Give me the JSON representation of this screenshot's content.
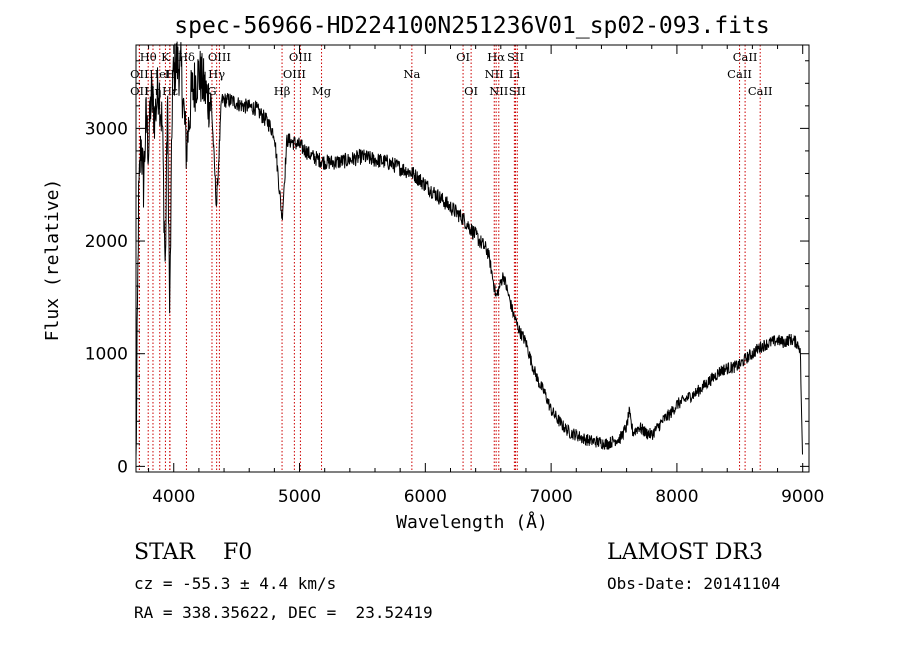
{
  "chart_data": {
    "type": "line",
    "title": "spec-56966-HD224100N251236V01_sp02-093.fits",
    "xlabel": "Wavelength (Å)",
    "ylabel": "Flux (relative)",
    "xlim": [
      3700,
      9050
    ],
    "ylim": [
      -50,
      3740
    ],
    "xticks": [
      4000,
      5000,
      6000,
      7000,
      8000,
      9000
    ],
    "yticks": [
      0,
      1000,
      2000,
      3000
    ],
    "grid": false,
    "series": [
      {
        "x": [
          3700,
          3720,
          3740,
          3760,
          3780,
          3800,
          3820,
          3850,
          3880,
          3910,
          3933,
          3950,
          3968,
          3990,
          4020,
          4060,
          4101,
          4140,
          4200,
          4260,
          4300,
          4340,
          4380,
          4450,
          4550,
          4650,
          4750,
          4800,
          4861,
          4900,
          5000,
          5100,
          5200,
          5300,
          5400,
          5500,
          5600,
          5700,
          5800,
          5900,
          6000,
          6100,
          6200,
          6300,
          6400,
          6500,
          6563,
          6620,
          6700,
          6750,
          6800,
          6850,
          6900,
          6950,
          7000,
          7050,
          7100,
          7150,
          7200,
          7250,
          7300,
          7350,
          7400,
          7450,
          7500,
          7550,
          7600,
          7620,
          7650,
          7700,
          7750,
          7800,
          7850,
          7900,
          7950,
          8000,
          8050,
          8100,
          8150,
          8200,
          8250,
          8300,
          8350,
          8400,
          8450,
          8500,
          8550,
          8600,
          8650,
          8700,
          8750,
          8800,
          8850,
          8900,
          8950,
          8980,
          9000
        ],
        "y": [
          0,
          2300,
          2900,
          2500,
          3100,
          2800,
          3300,
          3100,
          3400,
          3000,
          1700,
          3300,
          1300,
          3400,
          3600,
          3500,
          2800,
          3300,
          3500,
          3300,
          3200,
          2300,
          3250,
          3250,
          3200,
          3180,
          3050,
          2950,
          2200,
          2900,
          2850,
          2750,
          2700,
          2700,
          2720,
          2750,
          2720,
          2700,
          2650,
          2600,
          2500,
          2400,
          2300,
          2200,
          2050,
          1900,
          1500,
          1700,
          1350,
          1200,
          1100,
          900,
          750,
          650,
          500,
          420,
          350,
          300,
          280,
          250,
          230,
          220,
          210,
          200,
          230,
          250,
          350,
          480,
          300,
          350,
          300,
          280,
          350,
          420,
          470,
          550,
          580,
          620,
          650,
          700,
          750,
          800,
          850,
          870,
          880,
          900,
          960,
          1000,
          1050,
          1080,
          1100,
          1120,
          1100,
          1130,
          1100,
          1050,
          0
        ]
      }
    ],
    "lines": [
      {
        "label": "Hθ",
        "x": 3797,
        "row": 0
      },
      {
        "label": "OII",
        "x": 3727,
        "row": 1
      },
      {
        "label": "OII",
        "x": 3727,
        "row": 2
      },
      {
        "label": "K",
        "x": 3934,
        "row": 0
      },
      {
        "label": "HeI",
        "x": 3889,
        "row": 1
      },
      {
        "label": "Hε",
        "x": 3970,
        "row": 2
      },
      {
        "label": "Hδ",
        "x": 4101,
        "row": 0
      },
      {
        "label": "H",
        "x": 3968,
        "row": 1
      },
      {
        "label": "Hη",
        "x": 3835,
        "row": 2
      },
      {
        "label": "OIII",
        "x": 4363,
        "row": 0
      },
      {
        "label": "Hγ",
        "x": 4341,
        "row": 1
      },
      {
        "label": "G",
        "x": 4304,
        "row": 2
      },
      {
        "label": "OIII",
        "x": 5007,
        "row": 0
      },
      {
        "label": "OIII",
        "x": 4959,
        "row": 1
      },
      {
        "label": "Hβ",
        "x": 4861,
        "row": 2
      },
      {
        "label": "Mg",
        "x": 5175,
        "row": 2
      },
      {
        "label": "Na",
        "x": 5893,
        "row": 1
      },
      {
        "label": "OI",
        "x": 6300,
        "row": 0
      },
      {
        "label": "OI",
        "x": 6364,
        "row": 2
      },
      {
        "label": "Hα",
        "x": 6563,
        "row": 0
      },
      {
        "label": "NII",
        "x": 6548,
        "row": 1
      },
      {
        "label": "NII",
        "x": 6584,
        "row": 2
      },
      {
        "label": "SII",
        "x": 6717,
        "row": 0
      },
      {
        "label": "Li",
        "x": 6708,
        "row": 1
      },
      {
        "label": "SII",
        "x": 6731,
        "row": 2
      },
      {
        "label": "CaII",
        "x": 8542,
        "row": 0
      },
      {
        "label": "CaII",
        "x": 8498,
        "row": 1
      },
      {
        "label": "CaII",
        "x": 8662,
        "row": 2
      }
    ]
  },
  "info": {
    "class": "STAR    F0",
    "survey": "LAMOST DR3",
    "cz": "cz = -55.3 ± 4.4 km/s",
    "obsdate": "Obs-Date: 20141104",
    "radec": "RA = 338.35622, DEC =  23.52419"
  },
  "colors": {
    "spectrum": "#000000",
    "lines": "#cc0000",
    "axes": "#000000"
  }
}
